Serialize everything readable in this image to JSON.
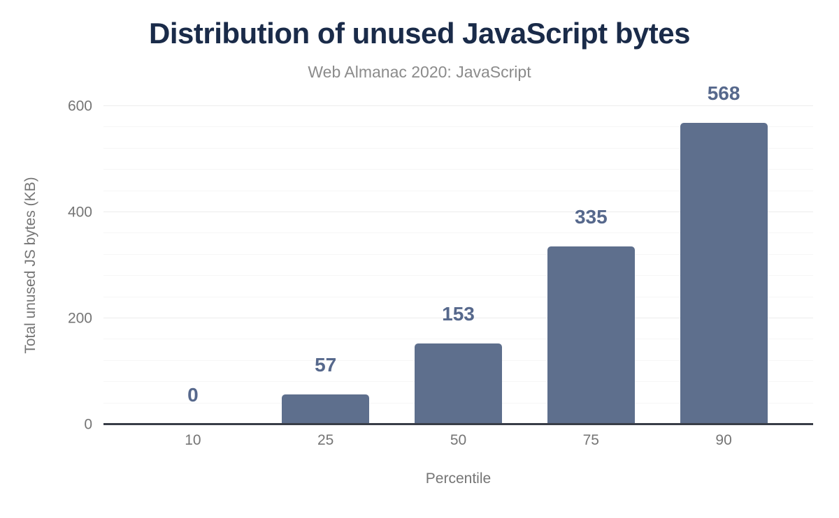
{
  "colors": {
    "background": "#ffffff",
    "title": "#1a2b49",
    "subtitle": "#8b8b8b",
    "tick_label": "#757575",
    "axis_title": "#757575",
    "bar": "#5e6f8d",
    "value_label": "#56688c",
    "baseline": "#383d47",
    "major_gridline": "#ececec",
    "minor_gridline": "#f6f6f6"
  },
  "chart_data": {
    "type": "bar",
    "title": "Distribution of unused JavaScript bytes",
    "subtitle": "Web Almanac 2020: JavaScript",
    "categories": [
      "10",
      "25",
      "50",
      "75",
      "90"
    ],
    "values": [
      0,
      57,
      153,
      335,
      568
    ],
    "value_labels": [
      "0",
      "57",
      "153",
      "335",
      "568"
    ],
    "xlabel": "Percentile",
    "ylabel": "Total unused JS bytes (KB)",
    "ylim": [
      0,
      600
    ],
    "yticks": [
      0,
      200,
      400,
      600
    ],
    "minor_grid_step": 40,
    "major_grid_step": 200,
    "grid": "on",
    "legend": "none"
  }
}
